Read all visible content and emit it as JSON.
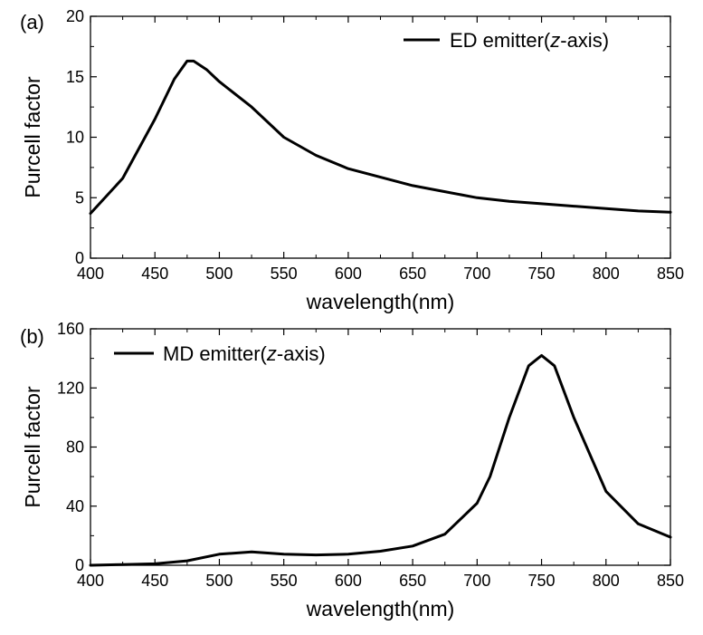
{
  "chart_data": [
    {
      "panel_label": "(a)",
      "type": "line",
      "xlabel": "wavelength(nm)",
      "ylabel": "Purcell factor",
      "xlim": [
        400,
        850
      ],
      "ylim": [
        0,
        20
      ],
      "xticks": [
        400,
        450,
        500,
        550,
        600,
        650,
        700,
        750,
        800,
        850
      ],
      "yticks": [
        0,
        5,
        10,
        15,
        20
      ],
      "legend_position": "top-right",
      "series": [
        {
          "name_prefix": "ED emitter(",
          "name_italic": "z",
          "name_suffix": "-axis)",
          "color": "#000000",
          "x": [
            400,
            425,
            450,
            465,
            475,
            480,
            490,
            500,
            525,
            550,
            575,
            600,
            625,
            650,
            675,
            700,
            725,
            750,
            775,
            800,
            825,
            850
          ],
          "y": [
            3.7,
            6.6,
            11.5,
            14.8,
            16.3,
            16.3,
            15.6,
            14.6,
            12.5,
            10.0,
            8.5,
            7.4,
            6.7,
            6.0,
            5.5,
            5.0,
            4.7,
            4.5,
            4.3,
            4.1,
            3.9,
            3.8
          ]
        }
      ]
    },
    {
      "panel_label": "(b)",
      "type": "line",
      "xlabel": "wavelength(nm)",
      "ylabel": "Purcell factor",
      "xlim": [
        400,
        850
      ],
      "ylim": [
        0,
        160
      ],
      "xticks": [
        400,
        450,
        500,
        550,
        600,
        650,
        700,
        750,
        800,
        850
      ],
      "yticks": [
        0,
        40,
        80,
        120,
        160
      ],
      "legend_position": "top-left",
      "series": [
        {
          "name_prefix": "MD emitter(",
          "name_italic": "z",
          "name_suffix": "-axis)",
          "color": "#000000",
          "x": [
            400,
            425,
            450,
            475,
            500,
            525,
            550,
            575,
            600,
            625,
            650,
            675,
            700,
            710,
            725,
            740,
            750,
            760,
            775,
            800,
            825,
            850
          ],
          "y": [
            0,
            0.5,
            1,
            3,
            7.5,
            9,
            7.5,
            7,
            7.5,
            9.5,
            13,
            21,
            42,
            60,
            100,
            135,
            142,
            135,
            100,
            50,
            28,
            19
          ]
        }
      ]
    }
  ]
}
